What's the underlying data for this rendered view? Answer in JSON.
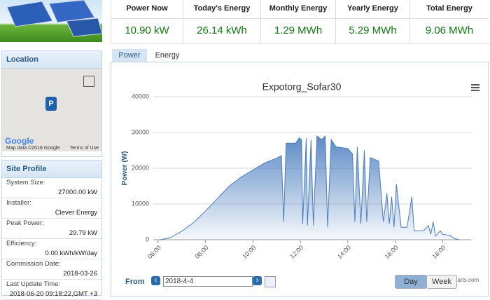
{
  "stats": [
    {
      "label": "Power Now",
      "value": "10.90 kW"
    },
    {
      "label": "Today's Energy",
      "value": "26.14 kWh"
    },
    {
      "label": "Monthly Energy",
      "value": "1.29 MWh"
    },
    {
      "label": "Yearly Energy",
      "value": "5.29 MWh"
    },
    {
      "label": "Total Energy",
      "value": "9.06 MWh"
    }
  ],
  "location": {
    "title": "Location",
    "map_credit": "Map data ©2018 Google",
    "terms": "Terms of Use",
    "logo": "Google",
    "marker": "P"
  },
  "site_profile": {
    "title": "Site Profile",
    "rows": [
      {
        "label": "System Size:",
        "value": "27000.00 kW"
      },
      {
        "label": "Installer:",
        "value": "Clever Energy"
      },
      {
        "label": "Peak Power:",
        "value": "29.79 kW"
      },
      {
        "label": "Efficiency:",
        "value": "0.00 kWh/kW/day"
      },
      {
        "label": "Commission Date:",
        "value": "2018-03-26"
      },
      {
        "label": "Last Update Time:",
        "value": "2018-06-20 09:18:22,GMT +3"
      }
    ]
  },
  "tabs": [
    "Power",
    "Energy"
  ],
  "chart": {
    "type": "area",
    "title": "Expotorg_Sofar30",
    "y_label": "Power (W)",
    "color": "#4a7dbf",
    "grid": true,
    "x": [
      6.1,
      6.5,
      7,
      7.5,
      8,
      8.5,
      9,
      9.5,
      10,
      10.5,
      11,
      11.2,
      11.3,
      11.4,
      11.8,
      11.95,
      12.05,
      12.1,
      12.25,
      12.3,
      12.45,
      12.55,
      12.7,
      12.9,
      13.05,
      13.15,
      13.3,
      13.5,
      14,
      14.2,
      14.3,
      14.4,
      14.55,
      14.7,
      14.8,
      14.95,
      15.3,
      15.5,
      15.65,
      15.75,
      15.85,
      15.95,
      16.05,
      16.25,
      16.5,
      16.7,
      16.8,
      17.2,
      17.4,
      17.5,
      17.6,
      17.7,
      17.9,
      18,
      18.3,
      18.5,
      18.7
    ],
    "values": [
      0,
      500,
      2400,
      4800,
      8000,
      11500,
      15000,
      17500,
      19500,
      21500,
      22800,
      23500,
      5000,
      27000,
      27000,
      28500,
      28000,
      4500,
      28500,
      4000,
      28000,
      4000,
      29000,
      28000,
      29000,
      3500,
      28000,
      26000,
      25500,
      24000,
      5000,
      26000,
      4500,
      25000,
      5000,
      23000,
      22000,
      5000,
      13000,
      4500,
      12000,
      3500,
      15500,
      3500,
      3500,
      12000,
      2500,
      2500,
      4000,
      1500,
      5000,
      1000,
      2500,
      1500,
      1200,
      300,
      0
    ],
    "xlim": [
      5.8,
      19.2
    ],
    "xticks": [
      {
        "value": 6,
        "label": "06:00"
      },
      {
        "value": 8,
        "label": "08:00"
      },
      {
        "value": 10,
        "label": "10:00"
      },
      {
        "value": 12,
        "label": "12:00"
      },
      {
        "value": 14,
        "label": "14:00"
      },
      {
        "value": 16,
        "label": "16:00"
      },
      {
        "value": 18,
        "label": "18:00"
      }
    ],
    "ylim": [
      0,
      40000
    ],
    "yticks": [
      0,
      10000,
      20000,
      30000,
      40000
    ],
    "credit": "charts.com"
  },
  "controls": {
    "from_label": "From",
    "date": "2018-4-4",
    "buttons": [
      "Day",
      "Week"
    ]
  }
}
